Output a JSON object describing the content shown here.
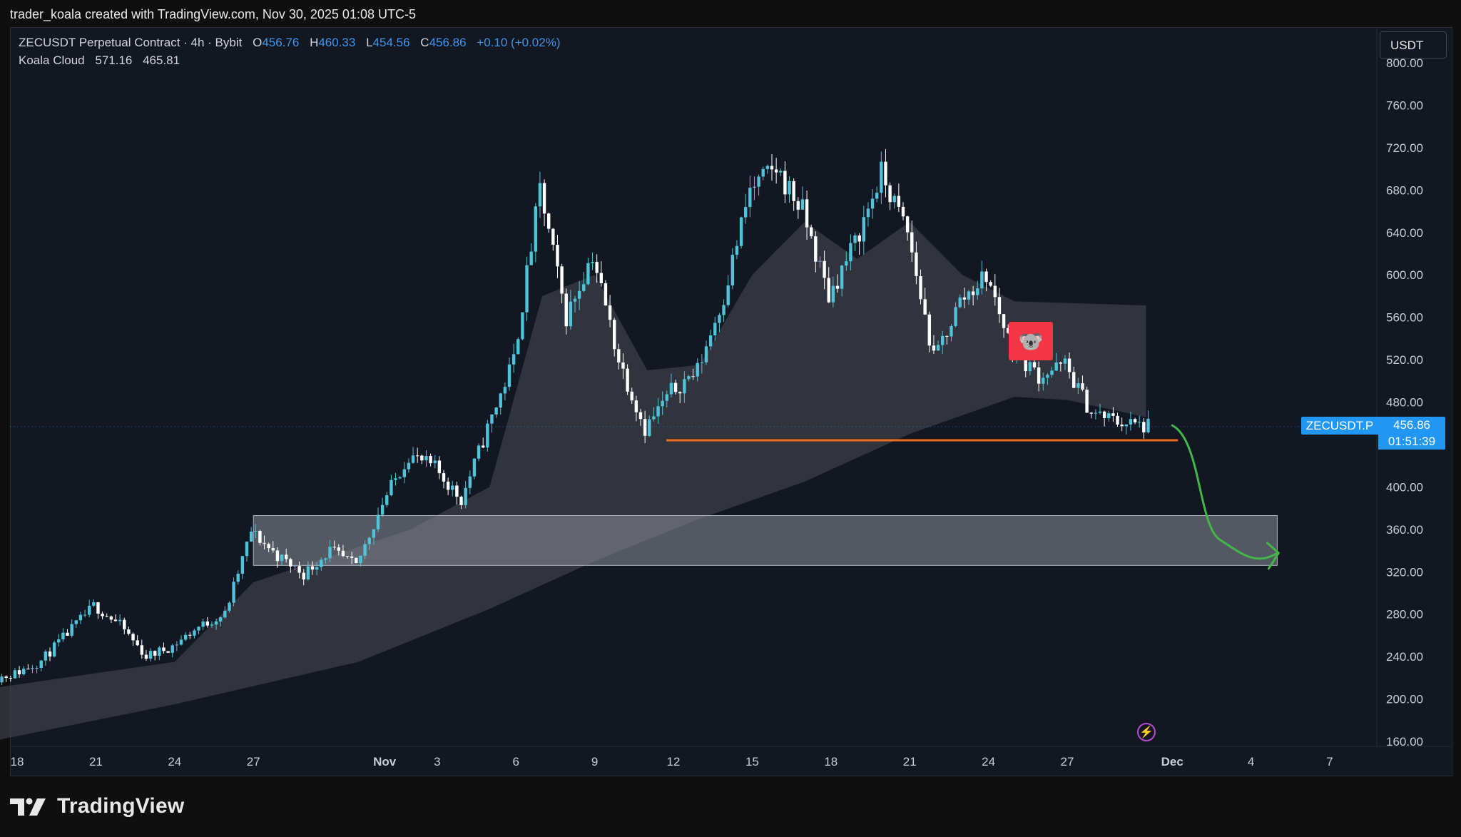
{
  "attribution": "trader_koala created with TradingView.com, Nov 30, 2025 01:08 UTC-5",
  "legend": {
    "symbol": "ZECUSDT Perpetual Contract · 4h · Bybit",
    "o_label": "O",
    "o": "456.76",
    "h_label": "H",
    "h": "460.33",
    "l_label": "L",
    "l": "454.56",
    "c_label": "C",
    "c": "456.86",
    "change": "+0.10 (+0.02%)",
    "indicator_name": "Koala Cloud",
    "indicator_v1": "571.16",
    "indicator_v2": "465.81"
  },
  "currency": "USDT",
  "price_tag": {
    "symbol": "ZECUSDT.P",
    "price": "456.86",
    "countdown": "01:51:39"
  },
  "footer": {
    "brand": "TradingView"
  },
  "icons": {
    "lightning": "lightning-icon",
    "koala": "koala-icon",
    "logo": "tradingview-logo-icon"
  },
  "colors": {
    "up": "#4fc3d9",
    "down": "#ffffff",
    "support_line": "#f26a1b",
    "arrow": "#43b649",
    "zone": "#8b8e98",
    "cloud": "#4a4c54",
    "accent": "#2196f3"
  },
  "chart_data": {
    "type": "candlestick",
    "timeframe": "4h",
    "x_ticks": [
      "18",
      "21",
      "24",
      "27",
      "Nov",
      "3",
      "6",
      "9",
      "12",
      "15",
      "18",
      "21",
      "24",
      "27",
      "Dec",
      "4",
      "7"
    ],
    "y_ticks": [
      "800.00",
      "760.00",
      "720.00",
      "680.00",
      "640.00",
      "600.00",
      "560.00",
      "520.00",
      "480.00",
      "440.00",
      "400.00",
      "360.00",
      "320.00",
      "280.00",
      "240.00",
      "200.00",
      "160.00"
    ],
    "y_range": [
      160,
      800
    ],
    "close_path": [
      [
        "2025-10-17",
        218
      ],
      [
        "2025-10-18",
        224
      ],
      [
        "2025-10-19",
        236
      ],
      [
        "2025-10-20",
        262
      ],
      [
        "2025-10-21",
        288
      ],
      [
        "2025-10-22",
        270
      ],
      [
        "2025-10-23",
        240
      ],
      [
        "2025-10-24",
        250
      ],
      [
        "2025-10-25",
        268
      ],
      [
        "2025-10-26",
        280
      ],
      [
        "2025-10-27",
        358
      ],
      [
        "2025-10-28",
        335
      ],
      [
        "2025-10-29",
        318
      ],
      [
        "2025-10-30",
        340
      ],
      [
        "2025-10-31",
        325
      ],
      [
        "2025-11-01",
        385
      ],
      [
        "2025-11-02",
        430
      ],
      [
        "2025-11-03",
        418
      ],
      [
        "2025-11-04",
        388
      ],
      [
        "2025-11-05",
        455
      ],
      [
        "2025-11-06",
        520
      ],
      [
        "2025-11-07",
        680
      ],
      [
        "2025-11-08",
        560
      ],
      [
        "2025-11-09",
        620
      ],
      [
        "2025-11-10",
        520
      ],
      [
        "2025-11-11",
        455
      ],
      [
        "2025-11-12",
        490
      ],
      [
        "2025-11-13",
        510
      ],
      [
        "2025-11-14",
        580
      ],
      [
        "2025-11-15",
        680
      ],
      [
        "2025-11-16",
        700
      ],
      [
        "2025-11-17",
        660
      ],
      [
        "2025-11-18",
        580
      ],
      [
        "2025-11-19",
        630
      ],
      [
        "2025-11-20",
        695
      ],
      [
        "2025-11-21",
        640
      ],
      [
        "2025-11-22",
        520
      ],
      [
        "2025-11-23",
        575
      ],
      [
        "2025-11-24",
        600
      ],
      [
        "2025-11-25",
        530
      ],
      [
        "2025-11-26",
        505
      ],
      [
        "2025-11-27",
        515
      ],
      [
        "2025-11-28",
        470
      ],
      [
        "2025-11-29",
        462
      ],
      [
        "2025-11-30",
        456.86
      ]
    ],
    "cloud_upper": [
      [
        "2025-10-17",
        210
      ],
      [
        "2025-10-24",
        235
      ],
      [
        "2025-10-27",
        310
      ],
      [
        "2025-11-02",
        360
      ],
      [
        "2025-11-05",
        400
      ],
      [
        "2025-11-07",
        580
      ],
      [
        "2025-11-09",
        600
      ],
      [
        "2025-11-11",
        510
      ],
      [
        "2025-11-13",
        515
      ],
      [
        "2025-11-15",
        600
      ],
      [
        "2025-11-17",
        650
      ],
      [
        "2025-11-19",
        615
      ],
      [
        "2025-11-21",
        650
      ],
      [
        "2025-11-23",
        600
      ],
      [
        "2025-11-25",
        575
      ],
      [
        "2025-11-30",
        571.16
      ]
    ],
    "cloud_lower": [
      [
        "2025-10-17",
        160
      ],
      [
        "2025-10-24",
        195
      ],
      [
        "2025-10-31",
        235
      ],
      [
        "2025-11-05",
        285
      ],
      [
        "2025-11-09",
        330
      ],
      [
        "2025-11-13",
        370
      ],
      [
        "2025-11-17",
        405
      ],
      [
        "2025-11-21",
        450
      ],
      [
        "2025-11-25",
        485
      ],
      [
        "2025-11-27",
        482
      ],
      [
        "2025-11-30",
        465.81
      ]
    ],
    "support_level": 444,
    "demand_zone": [
      326,
      373
    ],
    "demand_zone_dates": [
      "2025-10-27",
      "2025-12-05"
    ],
    "support_dates": [
      "2025-11-12",
      "2025-12-01"
    ],
    "projection": [
      [
        "2025-12-01",
        458
      ],
      [
        "2025-12-02",
        390
      ],
      [
        "2025-12-04",
        330
      ],
      [
        "2025-12-05",
        335
      ]
    ],
    "grid": false,
    "legend_position": "top-left"
  }
}
